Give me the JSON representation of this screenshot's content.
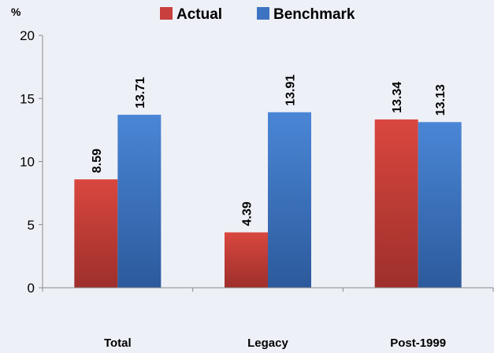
{
  "chart_data": {
    "type": "bar",
    "categories": [
      "Total",
      "Legacy",
      "Post-1999"
    ],
    "series": [
      {
        "name": "Actual",
        "values": [
          8.59,
          4.39,
          13.34
        ],
        "color": "#c8403d",
        "value_labels": [
          "8.59",
          "4.39",
          "13.34"
        ]
      },
      {
        "name": "Benchmark",
        "values": [
          13.71,
          13.91,
          13.13
        ],
        "color": "#3d73c1",
        "value_labels": [
          "13.71",
          "13.91",
          "13.13"
        ]
      }
    ],
    "y_unit": "%",
    "ylim": [
      0,
      20
    ],
    "yticks": [
      "0",
      "5",
      "10",
      "15",
      "20"
    ],
    "legend": "top-center",
    "grid": false
  }
}
